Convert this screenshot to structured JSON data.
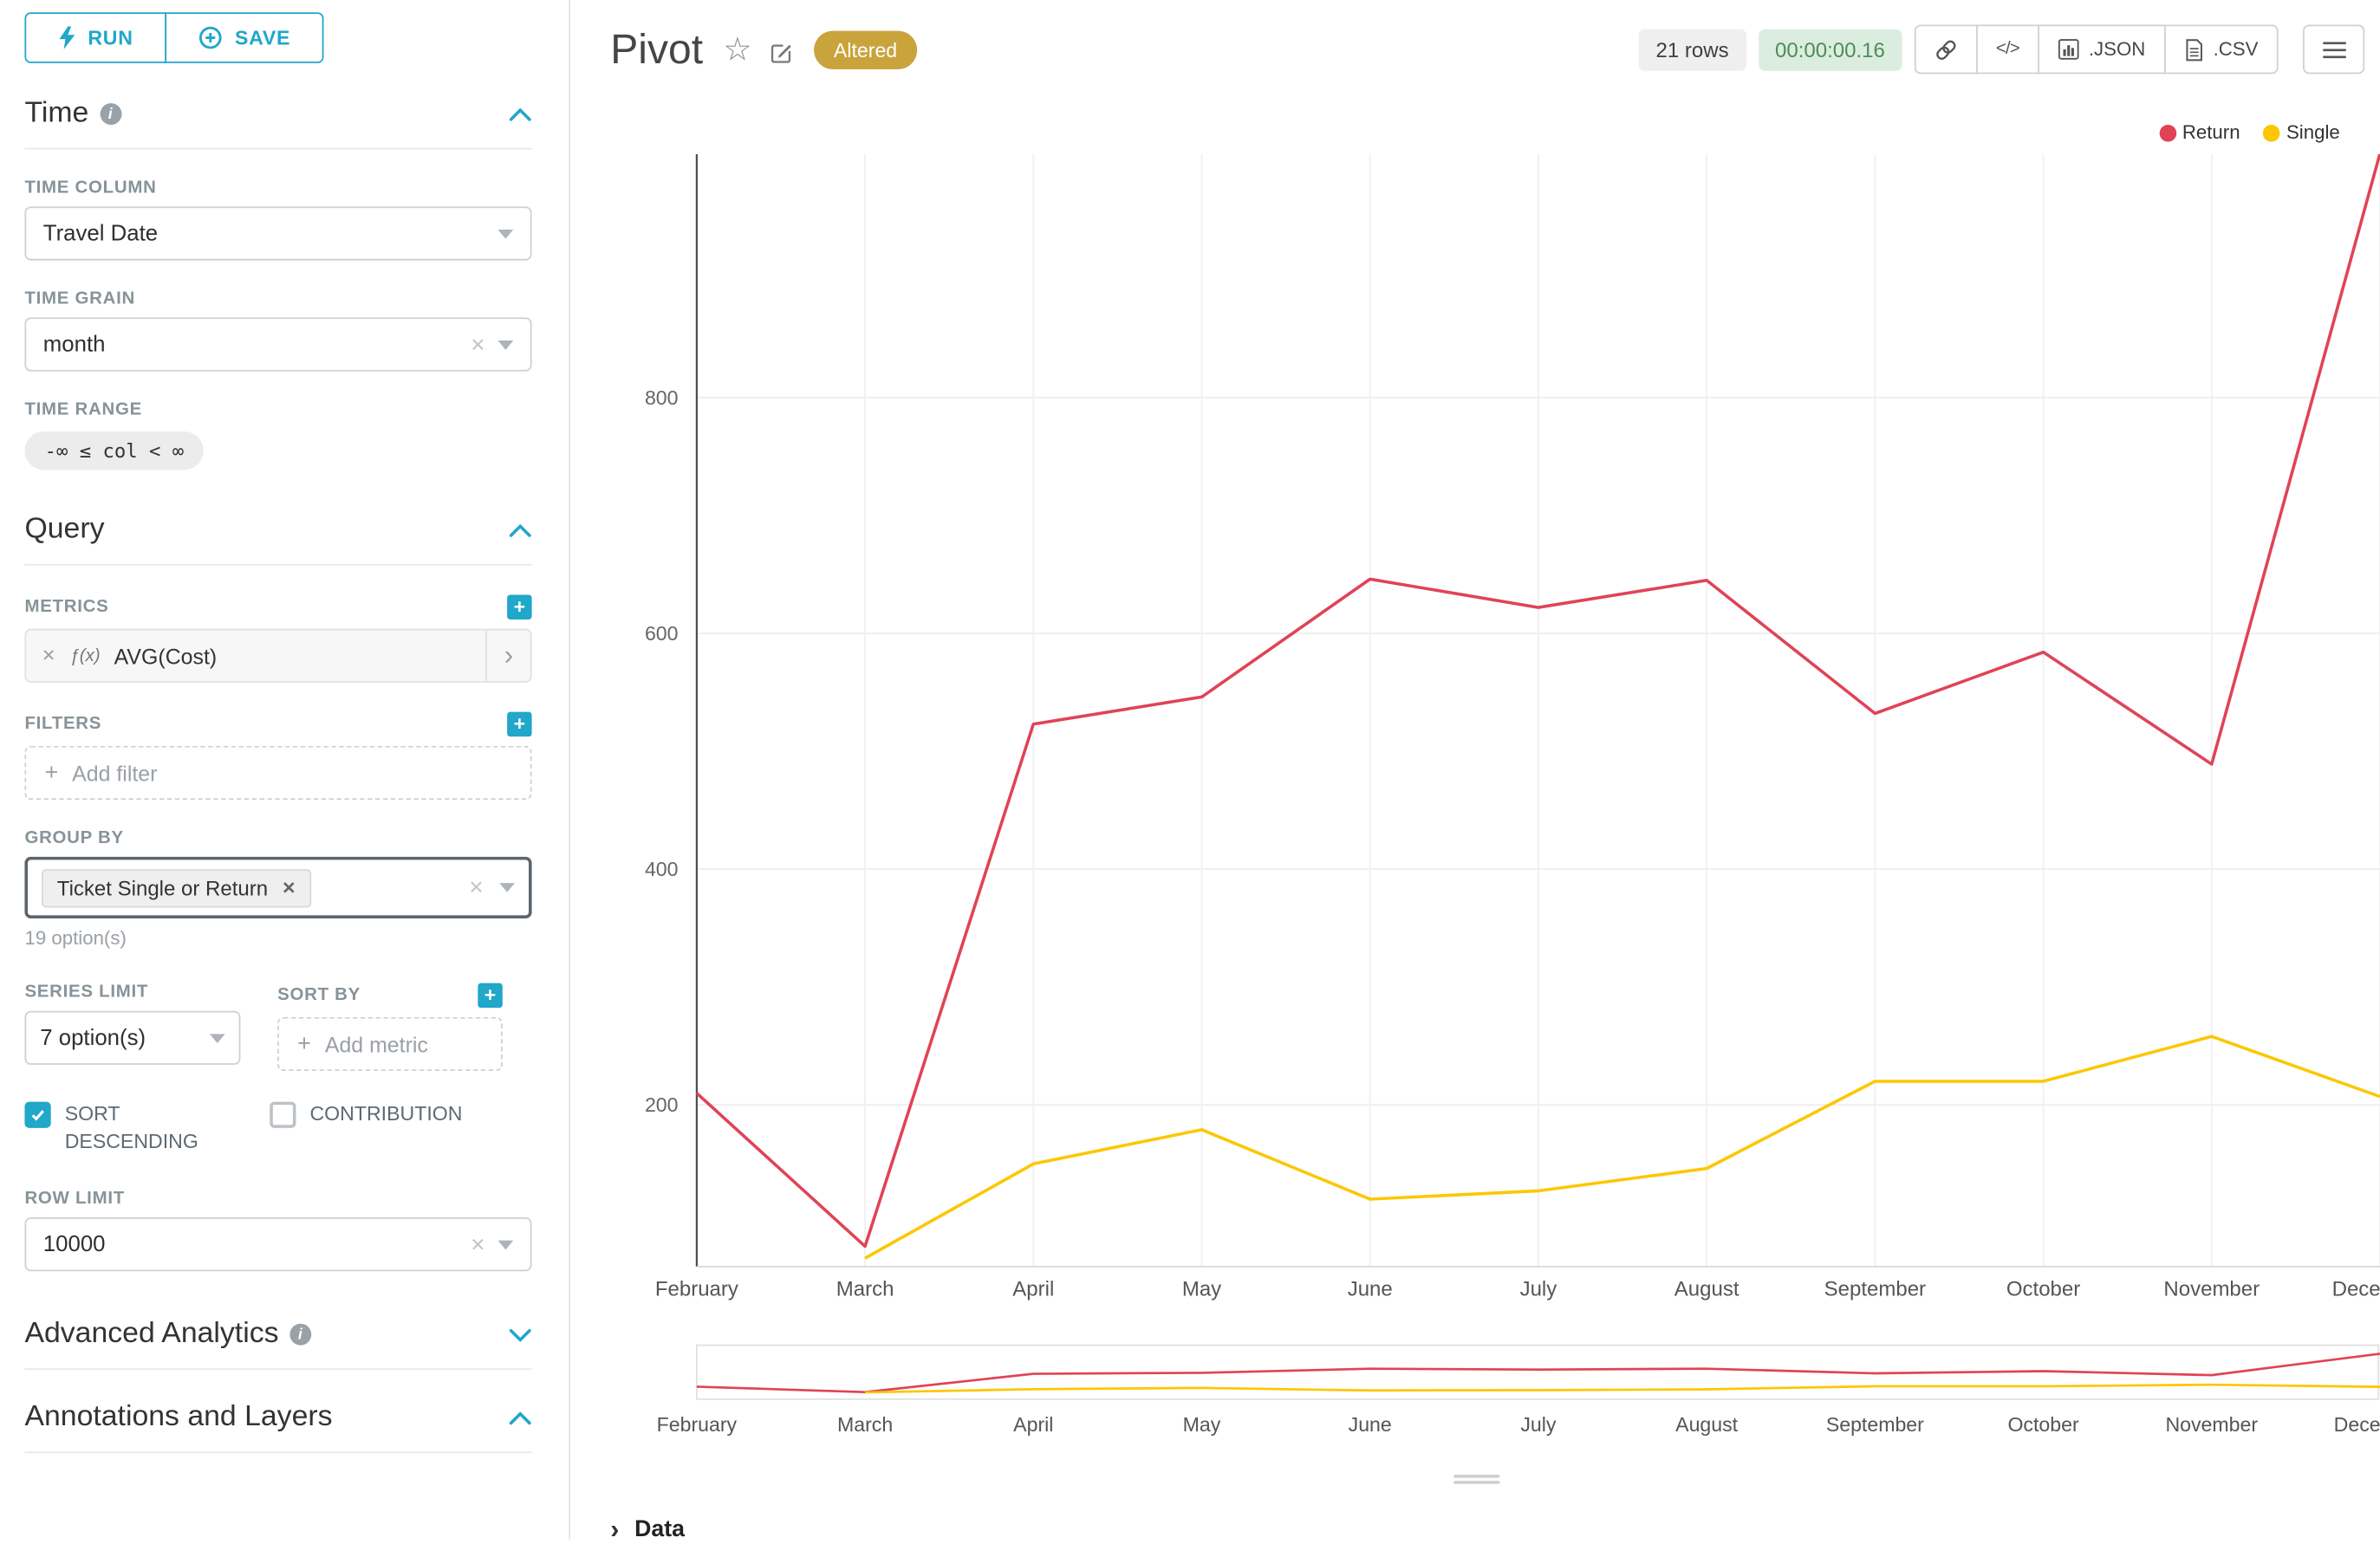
{
  "toolbar": {
    "run": "RUN",
    "save": "SAVE"
  },
  "icons": {
    "close": "✕",
    "chevron_right": "›",
    "star": "☆",
    "plus": "+",
    "data_chevron": "›"
  },
  "colors": {
    "accent": "#20A7C9",
    "altered": "#C9A33C",
    "timer_bg": "#DBEDDF",
    "timer_text": "#4E8C59"
  },
  "panel": {
    "time": {
      "title": "Time",
      "time_column_label": "TIME COLUMN",
      "time_column_value": "Travel Date",
      "time_grain_label": "TIME GRAIN",
      "time_grain_value": "month",
      "time_range_label": "TIME RANGE",
      "time_range_value": "-∞ ≤ col < ∞"
    },
    "query": {
      "title": "Query",
      "metrics_label": "METRICS",
      "metric_fn": "ƒ(x)",
      "metric_name": "AVG(Cost)",
      "filters_label": "FILTERS",
      "add_filter_label": "Add filter",
      "group_by_label": "GROUP BY",
      "group_by_value": "Ticket Single or Return",
      "group_by_options_hint": "19 option(s)",
      "series_limit_label": "SERIES LIMIT",
      "series_limit_value": "7 option(s)",
      "sort_by_label": "SORT BY",
      "add_metric_label": "Add metric",
      "sort_descending_label": "SORT DESCENDING",
      "sort_descending_checked": true,
      "contribution_label": "CONTRIBUTION",
      "contribution_checked": false,
      "row_limit_label": "ROW LIMIT",
      "row_limit_value": "10000"
    },
    "advanced_analytics_title": "Advanced Analytics",
    "annotations_title": "Annotations and Layers"
  },
  "header": {
    "title": "Pivot",
    "altered_badge": "Altered",
    "rows_badge": "21 rows",
    "timer_badge": "00:00:00.16",
    "code_button": "</>",
    "json_button": ".JSON",
    "csv_button": ".CSV"
  },
  "footer": {
    "data_label": "Data"
  },
  "chart_data": {
    "type": "line",
    "title": "Pivot",
    "categories": [
      "February",
      "March",
      "April",
      "May",
      "June",
      "July",
      "August",
      "September",
      "October",
      "November",
      "December"
    ],
    "series": [
      {
        "name": "Return",
        "color": "#E04355",
        "values": [
          210,
          80,
          523,
          546,
          646,
          622,
          645,
          532,
          584,
          489,
          1007
        ]
      },
      {
        "name": "Single",
        "color": "#FCC700",
        "values": [
          null,
          70,
          150,
          179,
          120,
          127,
          146,
          220,
          220,
          258,
          207
        ]
      }
    ],
    "yticks": [
      200,
      400,
      600,
      800
    ],
    "ylim": [
      60,
      1010
    ],
    "xlabel": "",
    "ylabel": "",
    "grid": true,
    "legend_position": "top-right",
    "has_minimap": true
  }
}
